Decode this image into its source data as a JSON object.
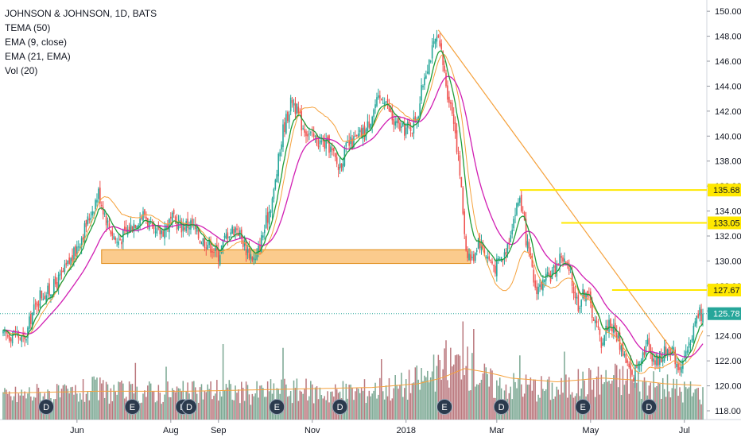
{
  "legend": {
    "symbol_line": "JOHNSON & JOHNSON, 1D, BATS",
    "ind1": "TEMA (50)",
    "ind2": "EMA (9, close)",
    "ind3": "EMA (21, EMA)",
    "ind4": "Vol (20)"
  },
  "colors": {
    "up": "#26a69a",
    "down": "#ef5350",
    "vol_up": "#4e8a6e",
    "vol_down": "#a34a52",
    "ema9": "#1e9d3a",
    "ema21": "#d11fb3",
    "tema": "#f5a13c",
    "trend": "#f5a13c",
    "resistance": "#ffe800",
    "zone_fill": "#f7a130",
    "event_bg": "#2b3a4d"
  },
  "chart_data": {
    "type": "candlestick",
    "title": "JOHNSON & JOHNSON, 1D, BATS",
    "ylim": [
      117.3,
      150.9
    ],
    "yticks": [
      118,
      120,
      122,
      124,
      126,
      128,
      130,
      132,
      134,
      136,
      138,
      140,
      142,
      144,
      146,
      148,
      150
    ],
    "last_price": "125.78",
    "last_price_value": 125.78,
    "xticks": [
      {
        "label": "Jun",
        "day": 48
      },
      {
        "label": "Aug",
        "day": 109
      },
      {
        "label": "Sep",
        "day": 140
      },
      {
        "label": "Nov",
        "day": 201
      },
      {
        "label": "2018",
        "day": 262
      },
      {
        "label": "Mar",
        "day": 321
      },
      {
        "label": "May",
        "day": 382
      },
      {
        "label": "Jul",
        "day": 443
      }
    ],
    "day_range": [
      0,
      455
    ],
    "price_path": [
      [
        0,
        124.0
      ],
      [
        8,
        124.2
      ],
      [
        14,
        123.5
      ],
      [
        18,
        125.5
      ],
      [
        24,
        127.3
      ],
      [
        30,
        127.5
      ],
      [
        38,
        128.8
      ],
      [
        46,
        130.5
      ],
      [
        56,
        133.5
      ],
      [
        62,
        135.5
      ],
      [
        68,
        133.0
      ],
      [
        74,
        131.5
      ],
      [
        80,
        132.3
      ],
      [
        86,
        133.2
      ],
      [
        92,
        133.8
      ],
      [
        98,
        132.0
      ],
      [
        104,
        132.5
      ],
      [
        110,
        133.3
      ],
      [
        116,
        132.8
      ],
      [
        122,
        133.0
      ],
      [
        128,
        131.8
      ],
      [
        134,
        131.4
      ],
      [
        140,
        130.5
      ],
      [
        146,
        132.3
      ],
      [
        152,
        132.7
      ],
      [
        158,
        131.0
      ],
      [
        164,
        130.0
      ],
      [
        170,
        132.6
      ],
      [
        176,
        135.5
      ],
      [
        182,
        140.5
      ],
      [
        188,
        143.0
      ],
      [
        194,
        141.0
      ],
      [
        200,
        140.0
      ],
      [
        206,
        139.5
      ],
      [
        212,
        139.2
      ],
      [
        218,
        137.5
      ],
      [
        224,
        139.2
      ],
      [
        230,
        139.8
      ],
      [
        236,
        140.5
      ],
      [
        242,
        142.5
      ],
      [
        248,
        143.2
      ],
      [
        254,
        141.0
      ],
      [
        260,
        140.5
      ],
      [
        266,
        140.8
      ],
      [
        270,
        142.0
      ],
      [
        274,
        145.0
      ],
      [
        278,
        146.5
      ],
      [
        282,
        147.8
      ],
      [
        285,
        146.5
      ],
      [
        289,
        143.5
      ],
      [
        293,
        141.5
      ],
      [
        297,
        137.0
      ],
      [
        301,
        131.0
      ],
      [
        305,
        130.0
      ],
      [
        309,
        131.8
      ],
      [
        314,
        130.5
      ],
      [
        320,
        129.5
      ],
      [
        326,
        130.5
      ],
      [
        331,
        133.0
      ],
      [
        336,
        135.2
      ],
      [
        341,
        131.0
      ],
      [
        346,
        127.8
      ],
      [
        352,
        128.2
      ],
      [
        358,
        129.2
      ],
      [
        363,
        130.5
      ],
      [
        368,
        129.0
      ],
      [
        374,
        126.5
      ],
      [
        379,
        127.8
      ],
      [
        384,
        125.5
      ],
      [
        389,
        123.5
      ],
      [
        394,
        125.2
      ],
      [
        399,
        124.0
      ],
      [
        404,
        122.5
      ],
      [
        409,
        120.5
      ],
      [
        414,
        122.3
      ],
      [
        419,
        123.4
      ],
      [
        424,
        122.0
      ],
      [
        429,
        122.5
      ],
      [
        434,
        123.2
      ],
      [
        439,
        121.6
      ],
      [
        444,
        122.2
      ],
      [
        448,
        124.2
      ],
      [
        452,
        125.78
      ]
    ],
    "vol_ylim": [
      0,
      28
    ],
    "volume_path": [
      [
        0,
        6
      ],
      [
        20,
        7
      ],
      [
        40,
        6.5
      ],
      [
        60,
        8
      ],
      [
        80,
        7
      ],
      [
        100,
        7.5
      ],
      [
        120,
        7
      ],
      [
        140,
        8
      ],
      [
        160,
        7
      ],
      [
        180,
        8
      ],
      [
        200,
        7.5
      ],
      [
        220,
        7
      ],
      [
        240,
        8
      ],
      [
        260,
        9
      ],
      [
        280,
        12
      ],
      [
        295,
        15
      ],
      [
        305,
        13
      ],
      [
        320,
        9
      ],
      [
        340,
        9
      ],
      [
        360,
        8
      ],
      [
        380,
        10
      ],
      [
        400,
        11
      ],
      [
        420,
        9
      ],
      [
        440,
        8
      ],
      [
        455,
        7
      ]
    ],
    "volume_spikes": [
      {
        "day": 299,
        "value": 26
      },
      {
        "day": 306,
        "value": 24
      },
      {
        "day": 288,
        "value": 21
      },
      {
        "day": 143,
        "value": 20
      },
      {
        "day": 182,
        "value": 19
      },
      {
        "day": 336,
        "value": 17
      },
      {
        "day": 408,
        "value": 17
      },
      {
        "day": 365,
        "value": 18
      },
      {
        "day": 246,
        "value": 16
      },
      {
        "day": 86,
        "value": 15
      },
      {
        "day": 106,
        "value": 14
      }
    ],
    "vol_ma_path": [
      [
        0,
        7
      ],
      [
        60,
        7.5
      ],
      [
        120,
        7.5
      ],
      [
        180,
        8
      ],
      [
        240,
        8.5
      ],
      [
        270,
        9.5
      ],
      [
        285,
        11
      ],
      [
        300,
        13.5
      ],
      [
        315,
        12.5
      ],
      [
        330,
        11
      ],
      [
        360,
        10
      ],
      [
        390,
        11
      ],
      [
        410,
        10.5
      ],
      [
        430,
        9.5
      ],
      [
        455,
        9
      ]
    ],
    "support_zone": {
      "day_start": 64,
      "day_end": 304,
      "low": 129.8,
      "high": 130.9
    },
    "trendline": {
      "from": [
        283,
        148.5
      ],
      "to": [
        439,
        122.2
      ]
    },
    "resistance_lines": [
      {
        "label": "135.68",
        "value": 135.68,
        "day_start": 336
      },
      {
        "label": "133.05",
        "value": 133.05,
        "day_start": 363
      },
      {
        "label": "127.67",
        "value": 127.67,
        "day_start": 396
      }
    ],
    "events": [
      {
        "label": "D",
        "day": 28
      },
      {
        "label": "D",
        "day": 117
      },
      {
        "label": "E",
        "day": 84
      },
      {
        "label": "D",
        "day": 121
      },
      {
        "label": "E",
        "day": 178
      },
      {
        "label": "D",
        "day": 219
      },
      {
        "label": "E",
        "day": 287
      },
      {
        "label": "D",
        "day": 324
      },
      {
        "label": "E",
        "day": 377
      },
      {
        "label": "D",
        "day": 420
      }
    ]
  }
}
